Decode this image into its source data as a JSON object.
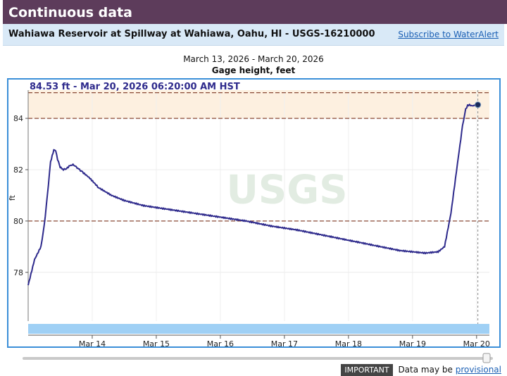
{
  "header": {
    "title": "Continuous data"
  },
  "site": {
    "name": "Wahiawa Reservoir at Spillway at Wahiawa, Oahu, HI - USGS-16210000",
    "subscribe_link": "Subscribe to WaterAlert"
  },
  "chart_data": {
    "type": "line",
    "date_range": "March 13, 2026 - March 20, 2026",
    "parameter": "Gage height, feet",
    "tooltip": "84.53 ft - Mar 20, 2026 06:20:00 AM HST",
    "ylabel": "ft",
    "ylim": [
      76.1,
      85.1
    ],
    "xlim": [
      0,
      7.2
    ],
    "x_unit": "days since Mar 13, 2026 00:00 HST",
    "x_ticks": [
      {
        "x": 1,
        "label": "Mar 14"
      },
      {
        "x": 2,
        "label": "Mar 15"
      },
      {
        "x": 3,
        "label": "Mar 16"
      },
      {
        "x": 4,
        "label": "Mar 17"
      },
      {
        "x": 5,
        "label": "Mar 18"
      },
      {
        "x": 6,
        "label": "Mar 19"
      },
      {
        "x": 7,
        "label": "Mar 20"
      }
    ],
    "y_ticks": [
      78,
      80,
      82,
      84
    ],
    "threshold_lines": [
      80,
      84,
      85
    ],
    "shaded_band": [
      84,
      85.1
    ],
    "watermark": "USGS",
    "series": [
      {
        "name": "Gage height",
        "x": [
          0.0,
          0.1,
          0.2,
          0.25,
          0.3,
          0.35,
          0.4,
          0.43,
          0.46,
          0.5,
          0.55,
          0.6,
          0.65,
          0.7,
          0.75,
          0.8,
          0.85,
          0.95,
          1.1,
          1.3,
          1.5,
          1.8,
          2.2,
          2.6,
          3.0,
          3.4,
          3.8,
          4.2,
          4.6,
          5.0,
          5.4,
          5.8,
          6.2,
          6.4,
          6.5,
          6.6,
          6.7,
          6.78,
          6.83,
          6.86,
          6.89,
          6.92,
          6.95,
          6.97,
          6.99,
          7.02
        ],
        "y": [
          77.5,
          78.5,
          79.0,
          79.8,
          81.0,
          82.3,
          82.78,
          82.75,
          82.4,
          82.1,
          82.0,
          82.05,
          82.15,
          82.2,
          82.1,
          82.0,
          81.9,
          81.7,
          81.3,
          81.0,
          80.8,
          80.6,
          80.45,
          80.3,
          80.15,
          80.0,
          79.8,
          79.65,
          79.45,
          79.25,
          79.05,
          78.85,
          78.75,
          78.8,
          79.0,
          80.3,
          82.2,
          83.7,
          84.35,
          84.5,
          84.53,
          84.5,
          84.5,
          84.52,
          84.53,
          84.53
        ]
      }
    ],
    "current_point": {
      "x": 7.02,
      "y": 84.53
    }
  },
  "footer": {
    "badge": "IMPORTANT",
    "text": "Data may be",
    "link": "provisional"
  }
}
